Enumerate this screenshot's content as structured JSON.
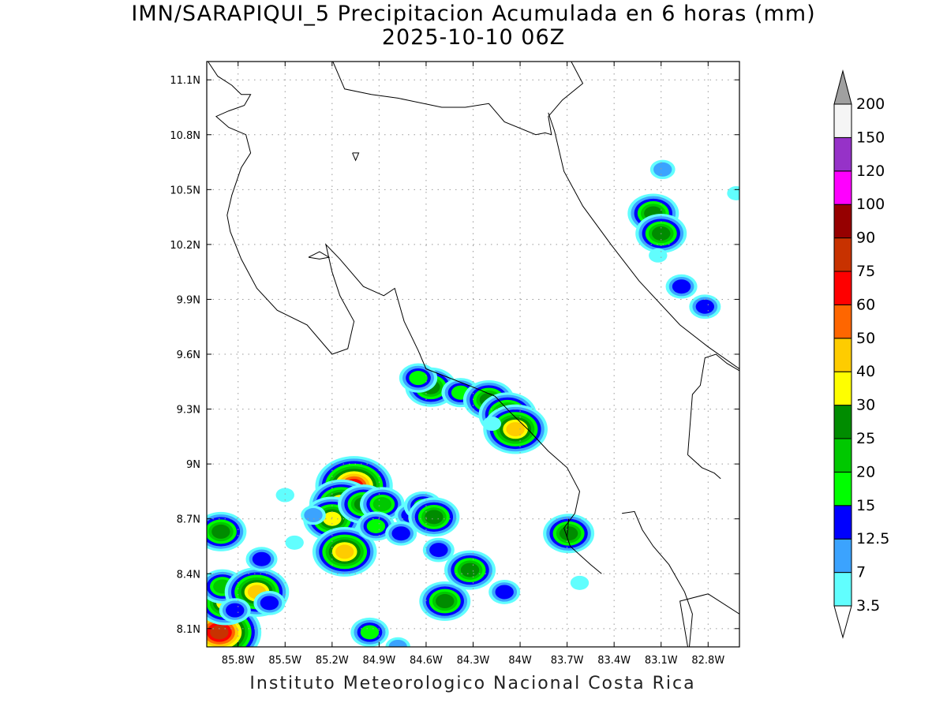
{
  "title": "IMN/SARAPIQUI_5 Precipitacion Acumulada en 6 horas (mm)",
  "subtitle": "2025-10-10 06Z",
  "credit": "Instituto Meteorologico Nacional Costa Rica",
  "map": {
    "lon_range": [
      -86.0,
      -82.6
    ],
    "lat_range": [
      8.0,
      11.2
    ],
    "lon_ticks": [
      {
        "value": -85.8,
        "label": "85.8W"
      },
      {
        "value": -85.5,
        "label": "85.5W"
      },
      {
        "value": -85.2,
        "label": "85.2W"
      },
      {
        "value": -84.9,
        "label": "84.9W"
      },
      {
        "value": -84.6,
        "label": "84.6W"
      },
      {
        "value": -84.3,
        "label": "84.3W"
      },
      {
        "value": -84.0,
        "label": "84W"
      },
      {
        "value": -83.7,
        "label": "83.7W"
      },
      {
        "value": -83.4,
        "label": "83.4W"
      },
      {
        "value": -83.1,
        "label": "83.1W"
      },
      {
        "value": -82.8,
        "label": "82.8W"
      }
    ],
    "lat_ticks": [
      {
        "value": 8.1,
        "label": "8.1N"
      },
      {
        "value": 8.4,
        "label": "8.4N"
      },
      {
        "value": 8.7,
        "label": "8.7N"
      },
      {
        "value": 9.0,
        "label": "9N"
      },
      {
        "value": 9.3,
        "label": "9.3N"
      },
      {
        "value": 9.6,
        "label": "9.6N"
      },
      {
        "value": 9.9,
        "label": "9.9N"
      },
      {
        "value": 10.2,
        "label": "10.2N"
      },
      {
        "value": 10.5,
        "label": "10.5N"
      },
      {
        "value": 10.8,
        "label": "10.8N"
      },
      {
        "value": 11.1,
        "label": "11.1N"
      }
    ],
    "grid": true,
    "coastlines": [
      [
        [
          -86.0,
          11.21
        ],
        [
          -85.93,
          11.12
        ],
        [
          -85.84,
          11.07
        ],
        [
          -85.78,
          11.02
        ],
        [
          -85.72,
          11.02
        ],
        [
          -85.76,
          10.96
        ],
        [
          -85.86,
          10.93
        ],
        [
          -85.94,
          10.9
        ],
        [
          -85.86,
          10.84
        ],
        [
          -85.75,
          10.8
        ],
        [
          -85.72,
          10.7
        ],
        [
          -85.78,
          10.62
        ],
        [
          -85.84,
          10.47
        ],
        [
          -85.87,
          10.36
        ],
        [
          -85.85,
          10.27
        ],
        [
          -85.78,
          10.12
        ],
        [
          -85.68,
          9.96
        ],
        [
          -85.55,
          9.84
        ],
        [
          -85.36,
          9.76
        ],
        [
          -85.2,
          9.6
        ],
        [
          -85.1,
          9.63
        ],
        [
          -85.06,
          9.78
        ],
        [
          -85.15,
          9.92
        ],
        [
          -85.2,
          10.05
        ],
        [
          -85.24,
          10.2
        ],
        [
          -85.15,
          10.12
        ],
        [
          -85.0,
          9.97
        ],
        [
          -84.87,
          9.92
        ],
        [
          -84.8,
          9.96
        ],
        [
          -84.74,
          9.78
        ],
        [
          -84.65,
          9.62
        ],
        [
          -84.6,
          9.52
        ],
        [
          -84.45,
          9.47
        ],
        [
          -84.3,
          9.42
        ],
        [
          -84.16,
          9.37
        ],
        [
          -84.06,
          9.28
        ],
        [
          -83.94,
          9.18
        ],
        [
          -83.82,
          9.07
        ],
        [
          -83.7,
          8.98
        ],
        [
          -83.62,
          8.85
        ],
        [
          -83.65,
          8.73
        ],
        [
          -83.72,
          8.65
        ],
        [
          -83.68,
          8.55
        ],
        [
          -83.55,
          8.45
        ],
        [
          -83.48,
          8.4
        ]
      ],
      [
        [
          -83.7,
          8.6
        ],
        [
          -83.69,
          8.7
        ]
      ],
      [
        [
          -83.35,
          8.73
        ],
        [
          -83.27,
          8.74
        ],
        [
          -83.22,
          8.64
        ],
        [
          -83.15,
          8.55
        ],
        [
          -83.05,
          8.45
        ],
        [
          -82.95,
          8.3
        ],
        [
          -82.9,
          8.18
        ],
        [
          -82.92,
          8.0
        ]
      ],
      [
        [
          -82.93,
          8.0
        ],
        [
          -82.98,
          8.25
        ],
        [
          -82.8,
          8.29
        ],
        [
          -82.6,
          8.18
        ]
      ],
      [
        [
          -85.2,
          11.21
        ],
        [
          -85.12,
          11.05
        ],
        [
          -84.95,
          11.02
        ],
        [
          -84.78,
          11.0
        ],
        [
          -84.5,
          10.95
        ],
        [
          -84.35,
          10.95
        ],
        [
          -84.2,
          10.97
        ],
        [
          -84.1,
          10.87
        ],
        [
          -83.9,
          10.8
        ],
        [
          -83.84,
          10.81
        ],
        [
          -83.8,
          10.8
        ],
        [
          -83.82,
          10.9
        ],
        [
          -83.73,
          10.99
        ],
        [
          -83.6,
          11.08
        ],
        [
          -83.68,
          11.21
        ]
      ],
      [
        [
          -83.82,
          10.92
        ],
        [
          -83.78,
          10.82
        ],
        [
          -83.72,
          10.6
        ],
        [
          -83.6,
          10.41
        ],
        [
          -83.42,
          10.2
        ],
        [
          -83.24,
          10.0
        ],
        [
          -82.98,
          9.76
        ],
        [
          -82.8,
          9.64
        ],
        [
          -82.6,
          9.52
        ]
      ],
      [
        [
          -82.6,
          9.51
        ],
        [
          -82.68,
          9.55
        ],
        [
          -82.75,
          9.6
        ],
        [
          -82.82,
          9.58
        ],
        [
          -82.85,
          9.43
        ],
        [
          -82.9,
          9.38
        ],
        [
          -82.93,
          9.05
        ]
      ],
      [
        [
          -82.93,
          9.05
        ],
        [
          -82.84,
          8.98
        ],
        [
          -82.76,
          8.95
        ],
        [
          -82.72,
          8.92
        ]
      ],
      [
        [
          -85.07,
          10.7
        ],
        [
          -85.05,
          10.66
        ],
        [
          -85.03,
          10.7
        ],
        [
          -85.07,
          10.7
        ]
      ],
      [
        [
          -85.35,
          10.13
        ],
        [
          -85.28,
          10.12
        ],
        [
          -85.22,
          10.13
        ],
        [
          -85.28,
          10.16
        ],
        [
          -85.35,
          10.13
        ]
      ]
    ]
  },
  "rain_cells": [
    {
      "lon": -85.92,
      "lat": 8.08,
      "value": 75
    },
    {
      "lon": -85.88,
      "lat": 8.24,
      "value": 30
    },
    {
      "lon": -85.9,
      "lat": 8.33,
      "value": 20
    },
    {
      "lon": -85.68,
      "lat": 8.3,
      "value": 40
    },
    {
      "lon": -85.6,
      "lat": 8.24,
      "value": 12.5
    },
    {
      "lon": -85.91,
      "lat": 8.63,
      "value": 25
    },
    {
      "lon": -85.65,
      "lat": 8.48,
      "value": 12.5
    },
    {
      "lon": -85.82,
      "lat": 8.2,
      "value": 12.5
    },
    {
      "lon": -85.06,
      "lat": 8.88,
      "value": 60
    },
    {
      "lon": -85.14,
      "lat": 8.78,
      "value": 40
    },
    {
      "lon": -85.2,
      "lat": 8.7,
      "value": 30
    },
    {
      "lon": -85.0,
      "lat": 8.78,
      "value": 25
    },
    {
      "lon": -85.12,
      "lat": 8.52,
      "value": 40
    },
    {
      "lon": -84.88,
      "lat": 8.78,
      "value": 20
    },
    {
      "lon": -84.92,
      "lat": 8.66,
      "value": 15
    },
    {
      "lon": -84.7,
      "lat": 8.72,
      "value": 12.5
    },
    {
      "lon": -84.62,
      "lat": 8.77,
      "value": 15
    },
    {
      "lon": -84.55,
      "lat": 8.71,
      "value": 25
    },
    {
      "lon": -84.76,
      "lat": 8.62,
      "value": 12.5
    },
    {
      "lon": -85.32,
      "lat": 8.72,
      "value": 7
    },
    {
      "lon": -84.48,
      "lat": 8.25,
      "value": 25
    },
    {
      "lon": -84.32,
      "lat": 8.42,
      "value": 25
    },
    {
      "lon": -84.52,
      "lat": 8.53,
      "value": 12.5
    },
    {
      "lon": -84.96,
      "lat": 8.08,
      "value": 15
    },
    {
      "lon": -84.1,
      "lat": 8.3,
      "value": 12.5
    },
    {
      "lon": -84.57,
      "lat": 9.42,
      "value": 25
    },
    {
      "lon": -84.65,
      "lat": 9.47,
      "value": 15
    },
    {
      "lon": -84.38,
      "lat": 9.39,
      "value": 15
    },
    {
      "lon": -84.2,
      "lat": 9.35,
      "value": 25
    },
    {
      "lon": -84.08,
      "lat": 9.27,
      "value": 30
    },
    {
      "lon": -84.03,
      "lat": 9.19,
      "value": 40
    },
    {
      "lon": -83.69,
      "lat": 8.62,
      "value": 25
    },
    {
      "lon": -83.15,
      "lat": 10.37,
      "value": 25
    },
    {
      "lon": -83.1,
      "lat": 10.26,
      "value": 25
    },
    {
      "lon": -82.82,
      "lat": 9.86,
      "value": 12.5
    },
    {
      "lon": -82.97,
      "lat": 9.97,
      "value": 12.5
    },
    {
      "lon": -83.09,
      "lat": 10.61,
      "value": 7
    },
    {
      "lon": -83.12,
      "lat": 10.14,
      "value": 3.5
    },
    {
      "lon": -82.62,
      "lat": 10.48,
      "value": 3.5
    },
    {
      "lon": -85.5,
      "lat": 8.83,
      "value": 3.5
    },
    {
      "lon": -85.44,
      "lat": 8.57,
      "value": 3.5
    },
    {
      "lon": -84.78,
      "lat": 8.0,
      "value": 7
    },
    {
      "lon": -84.18,
      "lat": 9.22,
      "value": 3.5
    },
    {
      "lon": -83.62,
      "lat": 8.35,
      "value": 3.5
    }
  ],
  "colorbar": {
    "levels": [
      "3.5",
      "7",
      "12.5",
      "15",
      "20",
      "25",
      "30",
      "40",
      "50",
      "60",
      "75",
      "90",
      "100",
      "120",
      "150",
      "200"
    ],
    "colors": [
      "#ffffff",
      "#61fefe",
      "#3ba3fe",
      "#0000fe",
      "#00fe00",
      "#00c800",
      "#008c00",
      "#fefe00",
      "#fecc00",
      "#fe6600",
      "#fe0000",
      "#c83200",
      "#960000",
      "#fe00fe",
      "#9632c8",
      "#f5f5f5",
      "#a0a0a0"
    ]
  }
}
